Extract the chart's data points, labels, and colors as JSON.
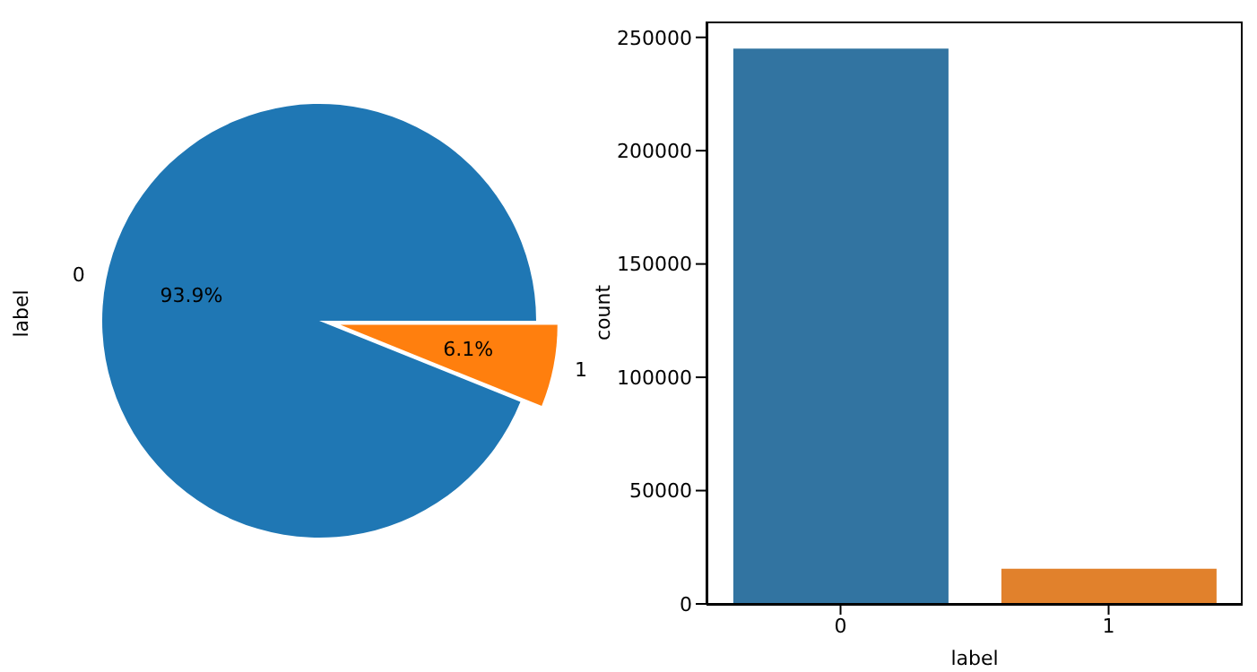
{
  "chart_data": [
    {
      "type": "pie",
      "ylabel": "label",
      "categories": [
        "0",
        "1"
      ],
      "values": [
        93.9,
        6.1
      ],
      "colors": [
        "#1f77b4",
        "#ff7f0e"
      ],
      "value_labels": [
        "93.9%",
        "6.1%"
      ]
    },
    {
      "type": "bar",
      "xlabel": "label",
      "ylabel": "count",
      "categories": [
        "0",
        "1"
      ],
      "values": [
        245000,
        15500
      ],
      "colors": [
        "#3274a1",
        "#e1812c"
      ],
      "ylim": [
        0,
        257000
      ],
      "yticks": [
        0,
        50000,
        100000,
        150000,
        200000,
        250000
      ],
      "grid": false,
      "legend": false
    }
  ]
}
